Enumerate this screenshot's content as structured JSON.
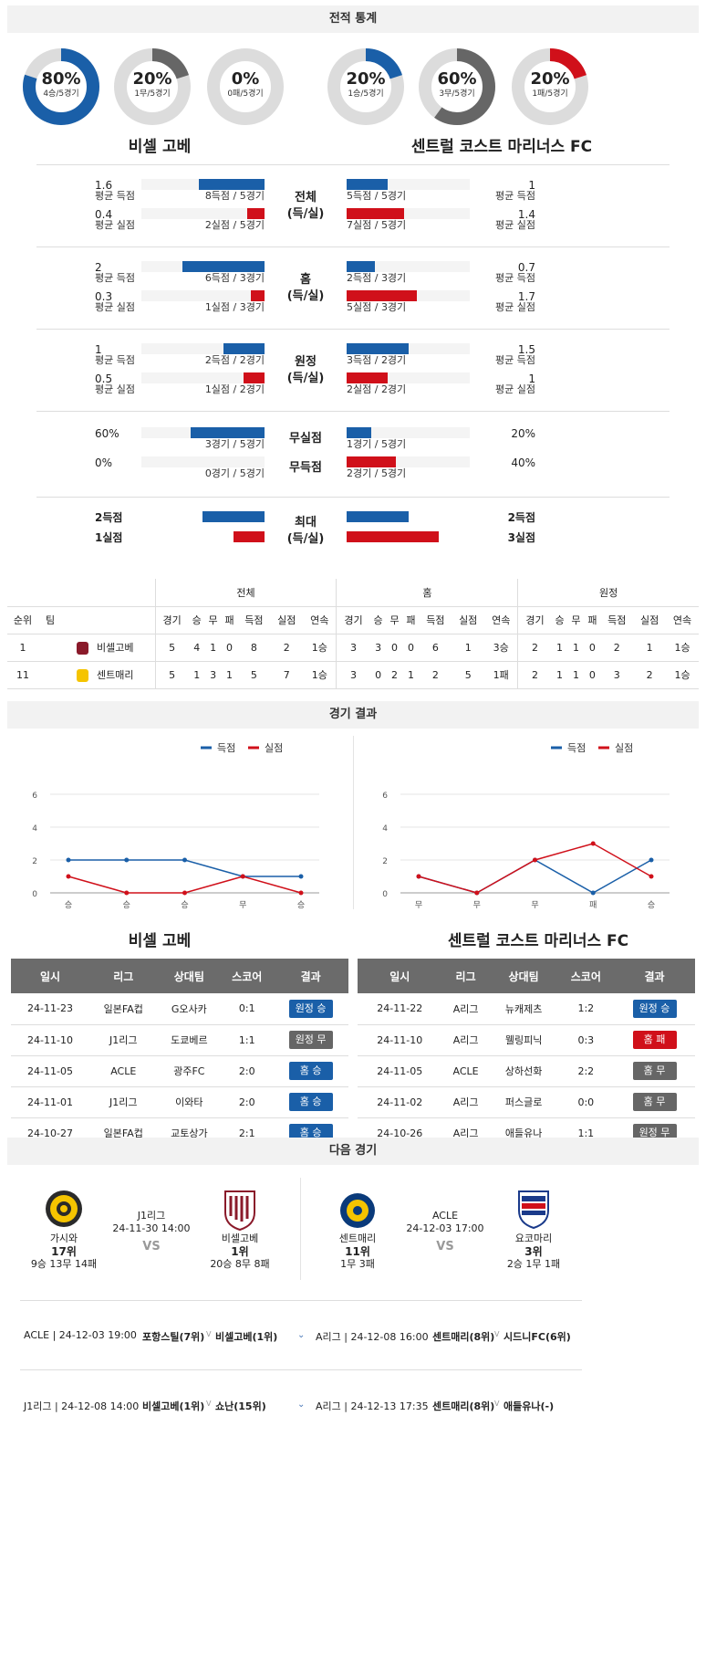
{
  "sections": {
    "stats": "전적 통계",
    "results": "경기 결과",
    "next": "다음 경기"
  },
  "colors": {
    "blue": "#1a5fa8",
    "red": "#d0101a",
    "gray": "#666666"
  },
  "home_team": "비셀 고베",
  "away_team": "센트럴 코스트 마리너스 FC",
  "donuts": [
    {
      "pct_label": "80%",
      "sub": "4승/5경기",
      "value": 0.8,
      "color": "#1a5fa8"
    },
    {
      "pct_label": "20%",
      "sub": "1무/5경기",
      "value": 0.2,
      "color": "#666666"
    },
    {
      "pct_label": "0%",
      "sub": "0패/5경기",
      "value": 0.0,
      "color": "#d0101a"
    },
    {
      "pct_label": "20%",
      "sub": "1승/5경기",
      "value": 0.2,
      "color": "#1a5fa8"
    },
    {
      "pct_label": "60%",
      "sub": "3무/5경기",
      "value": 0.6,
      "color": "#666666"
    },
    {
      "pct_label": "20%",
      "sub": "1패/5경기",
      "value": 0.2,
      "color": "#d0101a"
    }
  ],
  "compare": [
    {
      "cat": "전체",
      "cat2": "(득/실)",
      "left": [
        {
          "val": "1.6",
          "lbl": "평균 득점",
          "text": "8득점 / 5경기",
          "frac": 0.53,
          "color": "blue"
        },
        {
          "val": "0.4",
          "lbl": "평균 실점",
          "text": "2실점 / 5경기",
          "frac": 0.14,
          "color": "red"
        }
      ],
      "right": [
        {
          "val": "1",
          "lbl": "평균 득점",
          "text": "5득점 / 5경기",
          "frac": 0.33,
          "color": "blue"
        },
        {
          "val": "1.4",
          "lbl": "평균 실점",
          "text": "7실점 / 5경기",
          "frac": 0.47,
          "color": "red"
        }
      ]
    },
    {
      "cat": "홈",
      "cat2": "(득/실)",
      "left": [
        {
          "val": "2",
          "lbl": "평균 득점",
          "text": "6득점 / 3경기",
          "frac": 0.67,
          "color": "blue"
        },
        {
          "val": "0.3",
          "lbl": "평균 실점",
          "text": "1실점 / 3경기",
          "frac": 0.11,
          "color": "red"
        }
      ],
      "right": [
        {
          "val": "0.7",
          "lbl": "평균 득점",
          "text": "2득점 / 3경기",
          "frac": 0.23,
          "color": "blue"
        },
        {
          "val": "1.7",
          "lbl": "평균 실점",
          "text": "5실점 / 3경기",
          "frac": 0.57,
          "color": "red"
        }
      ]
    },
    {
      "cat": "원정",
      "cat2": "(득/실)",
      "left": [
        {
          "val": "1",
          "lbl": "평균 득점",
          "text": "2득점 / 2경기",
          "frac": 0.33,
          "color": "blue"
        },
        {
          "val": "0.5",
          "lbl": "평균 실점",
          "text": "1실점 / 2경기",
          "frac": 0.17,
          "color": "red"
        }
      ],
      "right": [
        {
          "val": "1.5",
          "lbl": "평균 득점",
          "text": "3득점 / 2경기",
          "frac": 0.5,
          "color": "blue"
        },
        {
          "val": "1",
          "lbl": "평균 실점",
          "text": "2실점 / 2경기",
          "frac": 0.33,
          "color": "red"
        }
      ]
    },
    {
      "cat": "무실점",
      "cat2": "",
      "left": [
        {
          "val": "60%",
          "lbl": "",
          "text": "3경기 / 5경기",
          "frac": 0.6,
          "color": "blue"
        }
      ],
      "right": [
        {
          "val": "20%",
          "lbl": "",
          "text": "1경기 / 5경기",
          "frac": 0.2,
          "color": "blue"
        }
      ]
    },
    {
      "cat": "무득점",
      "cat2": "",
      "left": [
        {
          "val": "0%",
          "lbl": "",
          "text": "0경기 / 5경기",
          "frac": 0.0,
          "color": "red"
        }
      ],
      "right": [
        {
          "val": "40%",
          "lbl": "",
          "text": "2경기 / 5경기",
          "frac": 0.4,
          "color": "red"
        }
      ]
    }
  ],
  "max": {
    "cat": "최대",
    "cat2": "(득/실)",
    "left": [
      {
        "val": "2득점",
        "frac": 0.5,
        "color": "blue"
      },
      {
        "val": "1실점",
        "frac": 0.25,
        "color": "red"
      }
    ],
    "right": [
      {
        "val": "2득점",
        "frac": 0.5,
        "color": "blue"
      },
      {
        "val": "3실점",
        "frac": 0.75,
        "color": "red"
      }
    ]
  },
  "standings": {
    "group_headers": [
      "전체",
      "홈",
      "원정"
    ],
    "col_rank": "순위",
    "col_team": "팀",
    "sub_cols": [
      "경기",
      "승",
      "무",
      "패",
      "득점",
      "실점",
      "연속"
    ],
    "rows": [
      {
        "rank": "1",
        "team": "비셀고베",
        "total": [
          "5",
          "4",
          "1",
          "0",
          "8",
          "2",
          "1승"
        ],
        "home": [
          "3",
          "3",
          "0",
          "0",
          "6",
          "1",
          "3승"
        ],
        "away": [
          "2",
          "1",
          "1",
          "0",
          "2",
          "1",
          "1승"
        ]
      },
      {
        "rank": "11",
        "team": "센트매리",
        "total": [
          "5",
          "1",
          "3",
          "1",
          "5",
          "7",
          "1승"
        ],
        "home": [
          "3",
          "0",
          "2",
          "1",
          "2",
          "5",
          "1패"
        ],
        "away": [
          "2",
          "1",
          "1",
          "0",
          "3",
          "2",
          "1승"
        ]
      }
    ]
  },
  "chart_data": [
    {
      "type": "line",
      "x": [
        "승",
        "승",
        "승",
        "무",
        "승"
      ],
      "ylim": [
        0,
        6
      ],
      "yticks": [
        "0",
        "2",
        "4",
        "6"
      ],
      "legend": "top-right",
      "series": [
        {
          "name": "득점",
          "values": [
            2,
            2,
            2,
            1,
            1
          ],
          "color": "#1a5fa8"
        },
        {
          "name": "실점",
          "values": [
            1,
            0,
            0,
            1,
            0
          ],
          "color": "#d0101a"
        }
      ]
    },
    {
      "type": "line",
      "x": [
        "무",
        "무",
        "무",
        "패",
        "승"
      ],
      "ylim": [
        0,
        6
      ],
      "yticks": [
        "0",
        "2",
        "4",
        "6"
      ],
      "legend": "top-right",
      "series": [
        {
          "name": "득점",
          "values": [
            1,
            0,
            2,
            0,
            2
          ],
          "color": "#1a5fa8"
        },
        {
          "name": "실점",
          "values": [
            1,
            0,
            2,
            3,
            1
          ],
          "color": "#d0101a"
        }
      ]
    }
  ],
  "results_headers": [
    "일시",
    "리그",
    "상대팀",
    "스코어",
    "결과"
  ],
  "results_left": [
    {
      "date": "24-11-23",
      "league": "일본FA컵",
      "opp": "G오사카",
      "score": "0:1",
      "result": "원정 승",
      "badge": "blue"
    },
    {
      "date": "24-11-10",
      "league": "J1리그",
      "opp": "도쿄베르",
      "score": "1:1",
      "result": "원정 무",
      "badge": "gray"
    },
    {
      "date": "24-11-05",
      "league": "ACLE",
      "opp": "광주FC",
      "score": "2:0",
      "result": "홈 승",
      "badge": "blue"
    },
    {
      "date": "24-11-01",
      "league": "J1리그",
      "opp": "이와타",
      "score": "2:0",
      "result": "홈 승",
      "badge": "blue"
    },
    {
      "date": "24-10-27",
      "league": "일본FA컵",
      "opp": "교토상가",
      "score": "2:1",
      "result": "홈 승",
      "badge": "blue"
    }
  ],
  "results_right": [
    {
      "date": "24-11-22",
      "league": "A리그",
      "opp": "뉴캐제츠",
      "score": "1:2",
      "result": "원정 승",
      "badge": "blue"
    },
    {
      "date": "24-11-10",
      "league": "A리그",
      "opp": "웰링피닉",
      "score": "0:3",
      "result": "홈 패",
      "badge": "red"
    },
    {
      "date": "24-11-05",
      "league": "ACLE",
      "opp": "상하선화",
      "score": "2:2",
      "result": "홈 무",
      "badge": "gray"
    },
    {
      "date": "24-11-02",
      "league": "A리그",
      "opp": "퍼스글로",
      "score": "0:0",
      "result": "홈 무",
      "badge": "gray"
    },
    {
      "date": "24-10-26",
      "league": "A리그",
      "opp": "애들유나",
      "score": "1:1",
      "result": "원정 무",
      "badge": "gray"
    }
  ],
  "next_left": {
    "team1": {
      "name": "가시와",
      "rank": "17위",
      "record": "9승 13무 14패"
    },
    "league": "J1리그",
    "datetime": "24-11-30 14:00",
    "vs": "VS",
    "team2": {
      "name": "비셀고베",
      "rank": "1위",
      "record": "20승 8무 8패"
    }
  },
  "next_right": {
    "team1": {
      "name": "센트매리",
      "rank": "11위",
      "record": "1무 3패"
    },
    "league": "ACLE",
    "datetime": "24-12-03 17:00",
    "vs": "VS",
    "team2": {
      "name": "요코마리",
      "rank": "3위",
      "record": "2승 1무 1패"
    }
  },
  "upcoming": [
    {
      "left_info": "ACLE | 24-12-03 19:00",
      "left_t1": "포항스틸(7위)",
      "left_t2": "비셀고베(1위)",
      "right_info": "A리그 | 24-12-08 16:00",
      "right_t1": "센트매리(8위)",
      "right_t2": "시드니FC(6위)"
    },
    {
      "left_info": "J1리그 | 24-12-08 14:00",
      "left_t1": "비셀고베(1위)",
      "left_t2": "쇼난(15위)",
      "right_info": "A리그 | 24-12-13 17:35",
      "right_t1": "센트매리(8위)",
      "right_t2": "애들유나(-)"
    }
  ]
}
